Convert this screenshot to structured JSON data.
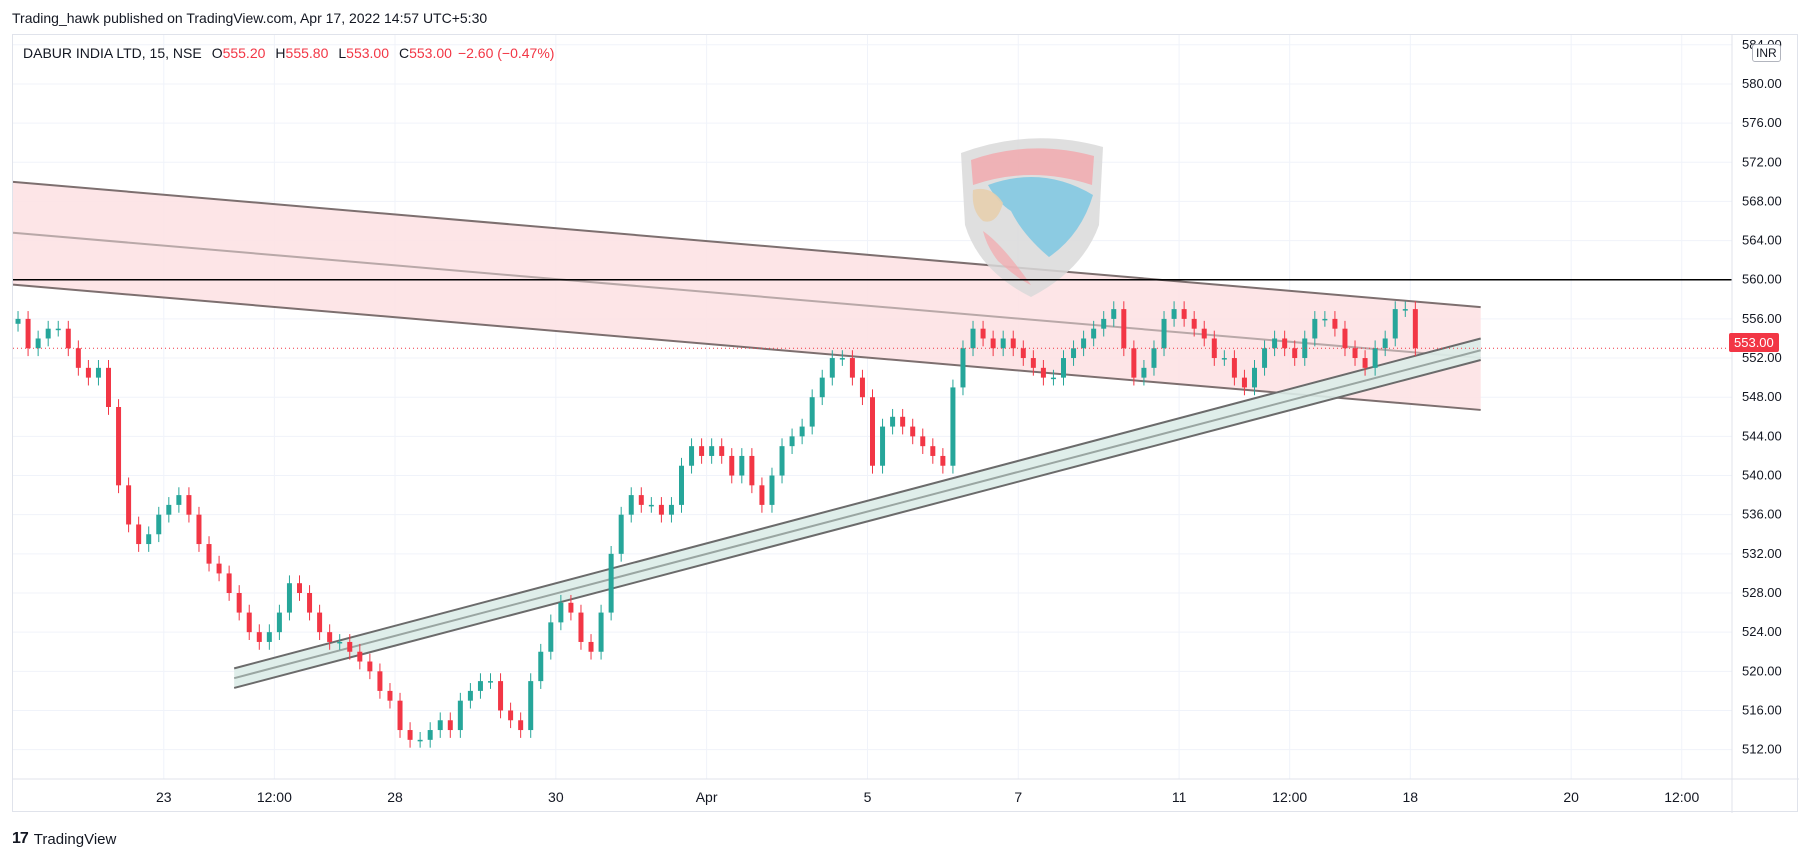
{
  "header": {
    "publish_line": "Trading_hawk published on TradingView.com, Apr 17, 2022 14:57 UTC+5:30"
  },
  "legend": {
    "symbol": "DABUR INDIA LTD, 15, NSE",
    "open_key": "O",
    "open": "555.20",
    "high_key": "H",
    "high": "555.80",
    "low_key": "L",
    "low": "553.00",
    "close_key": "C",
    "close": "553.00",
    "change": "−2.60 (−0.47%)"
  },
  "price_axis": {
    "currency": "INR",
    "last_price_label": "553.00"
  },
  "footer": {
    "brand": "TradingView"
  },
  "colors": {
    "up": "#26a69a",
    "down": "#f23645",
    "channel_fill": "#fde2e4",
    "support_fill": "#dbece8",
    "line_gray": "#6b6b6b",
    "resistance_line": "#000000",
    "grid": "#f0f3fa"
  },
  "chart_data": {
    "type": "candlestick",
    "title": "DABUR INDIA LTD, 15, NSE",
    "ylim": [
      509,
      585
    ],
    "y_ticks": [
      512,
      516,
      520,
      524,
      528,
      532,
      536,
      540,
      544,
      548,
      552,
      556,
      560,
      564,
      568,
      572,
      576,
      580,
      584
    ],
    "y_tick_labels": [
      "512.00",
      "516.00",
      "520.00",
      "524.00",
      "528.00",
      "532.00",
      "536.00",
      "540.00",
      "544.00",
      "548.00",
      "552.00",
      "556.00",
      "560.00",
      "564.00",
      "568.00",
      "572.00",
      "576.00",
      "580.00",
      "584.00"
    ],
    "x_ticks": [
      {
        "label": "23",
        "i": 15
      },
      {
        "label": "12:00",
        "i": 26
      },
      {
        "label": "28",
        "i": 38
      },
      {
        "label": "30",
        "i": 54
      },
      {
        "label": "Apr",
        "i": 69
      },
      {
        "label": "5",
        "i": 85
      },
      {
        "label": "7",
        "i": 100
      },
      {
        "label": "11",
        "i": 116
      },
      {
        "label": "12:00",
        "i": 127
      },
      {
        "label": "18",
        "i": 139
      },
      {
        "label": "20",
        "i": 155
      },
      {
        "label": "12:00",
        "i": 166
      }
    ],
    "x_max_index": 171,
    "last_price": 553.0,
    "resistance_level": 560,
    "closes": [
      556,
      553,
      554,
      555,
      555,
      553,
      551,
      550,
      551,
      547,
      539,
      535,
      533,
      534,
      536,
      537,
      538,
      536,
      533,
      531,
      530,
      528,
      526,
      524,
      523,
      524,
      526,
      529,
      528,
      526,
      524,
      523,
      523,
      522,
      521,
      520,
      518,
      517,
      514,
      513,
      513,
      514,
      515,
      514,
      517,
      518,
      519,
      519,
      516,
      515,
      514,
      519,
      522,
      525,
      527,
      526,
      523,
      522,
      526,
      532,
      536,
      538,
      537,
      537,
      536,
      537,
      541,
      543,
      542,
      543,
      542,
      540,
      542,
      539,
      537,
      540,
      543,
      544,
      545,
      548,
      550,
      552,
      552,
      550,
      548,
      541,
      545,
      546,
      545,
      544,
      543,
      542,
      541,
      549,
      553,
      555,
      554,
      553,
      554,
      553,
      552,
      551,
      550,
      550,
      552,
      553,
      554,
      555,
      556,
      557,
      553,
      550,
      551,
      553,
      556,
      557,
      556,
      555,
      554,
      552,
      552,
      550,
      549,
      551,
      553,
      554,
      553,
      552,
      554,
      556,
      556,
      555,
      553,
      552,
      551,
      553,
      554,
      557,
      557,
      553
    ],
    "channel_upper": {
      "x": [
        0,
        146
      ],
      "y": [
        570,
        557.2
      ]
    },
    "channel_mid": {
      "x": [
        0,
        146
      ],
      "y": [
        564.8,
        552
      ]
    },
    "channel_lower": {
      "x": [
        0,
        146
      ],
      "y": [
        559.5,
        546.7
      ]
    },
    "support_upper": {
      "x": [
        22,
        146
      ],
      "y": [
        520.3,
        554
      ]
    },
    "support_mid": {
      "x": [
        22,
        146
      ],
      "y": [
        519.3,
        552.8
      ]
    },
    "support_lower": {
      "x": [
        22,
        146
      ],
      "y": [
        518.3,
        551.8
      ]
    }
  }
}
